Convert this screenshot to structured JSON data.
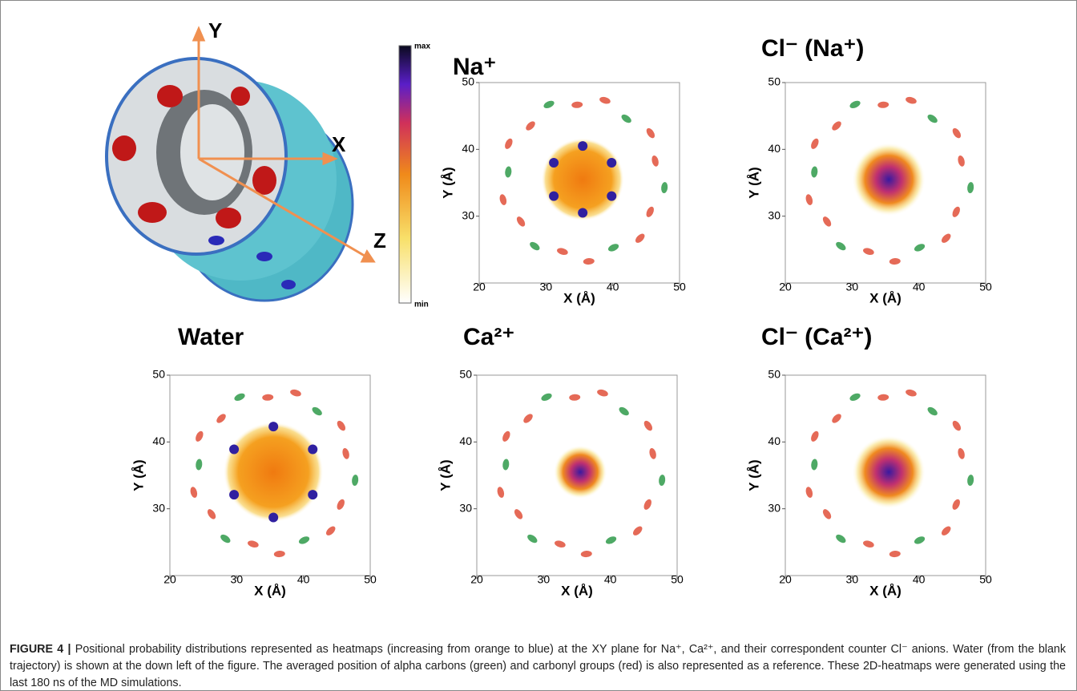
{
  "figure": {
    "axes3d": {
      "x": "X",
      "y": "Y",
      "z": "Z"
    },
    "colorbar": {
      "max": "max",
      "min": "min"
    },
    "panels": [
      {
        "title": "Na⁺",
        "xlabel": "X (Å)",
        "ylabel": "Y (Å)",
        "xlim": [
          20,
          50
        ],
        "ylim": [
          20,
          50
        ],
        "xticks": [
          20,
          30,
          40,
          50
        ],
        "yticks": [
          30,
          40,
          50
        ]
      },
      {
        "title": "Cl⁻ (Na⁺)",
        "xlabel": "X (Å)",
        "ylabel": "Y (Å)",
        "xlim": [
          20,
          50
        ],
        "ylim": [
          20,
          50
        ],
        "xticks": [
          20,
          30,
          40,
          50
        ],
        "yticks": [
          30,
          40,
          50
        ]
      },
      {
        "title": "Water",
        "xlabel": "X (Å)",
        "ylabel": "Y (Å)",
        "xlim": [
          20,
          50
        ],
        "ylim": [
          20,
          50
        ],
        "xticks": [
          20,
          30,
          40,
          50
        ],
        "yticks": [
          30,
          40,
          50
        ]
      },
      {
        "title": "Ca²⁺",
        "xlabel": "X (Å)",
        "ylabel": "Y (Å)",
        "xlim": [
          20,
          50
        ],
        "ylim": [
          20,
          50
        ],
        "xticks": [
          20,
          30,
          40,
          50
        ],
        "yticks": [
          30,
          40,
          50
        ]
      },
      {
        "title": "Cl⁻ (Ca²⁺)",
        "xlabel": "X (Å)",
        "ylabel": "Y (Å)",
        "xlim": [
          20,
          50
        ],
        "ylim": [
          20,
          50
        ],
        "xticks": [
          20,
          30,
          40,
          50
        ],
        "yticks": [
          30,
          40,
          50
        ]
      }
    ],
    "caption": {
      "label": "FIGURE 4 |",
      "text": "Positional probability distributions represented as heatmaps (increasing from orange to blue) at the XY plane for Na⁺, Ca²⁺, and their correspondent counter Cl⁻ anions. Water (from the blank trajectory) is shown at the down left of the figure. The averaged position of alpha carbons (green) and carbonyl groups (red) is also represented as a reference. These 2D-heatmaps were generated using the last 180 ns of the MD simulations."
    }
  }
}
